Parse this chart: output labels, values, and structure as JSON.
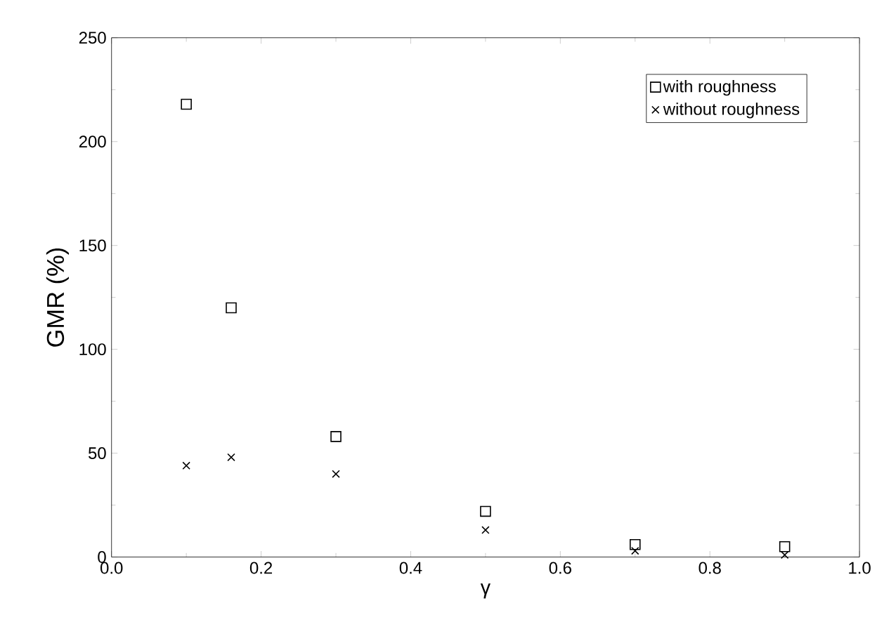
{
  "chart_data": {
    "type": "scatter",
    "xlabel": "γ",
    "ylabel": "GMR (%)",
    "x": [
      0.1,
      0.16,
      0.3,
      0.5,
      0.7,
      0.9
    ],
    "series": [
      {
        "name": "with roughness",
        "color": "#000000",
        "marker": "square",
        "values": [
          218,
          120,
          58,
          22,
          6,
          5
        ]
      },
      {
        "name": "without roughness",
        "color": "#000000",
        "marker": "cross",
        "values": [
          44,
          48,
          40,
          13,
          3,
          1
        ]
      }
    ],
    "xlim": [
      0,
      1
    ],
    "ylim": [
      0,
      250
    ],
    "xticks": [
      {
        "value": 0,
        "label": "0.0"
      },
      0.2,
      0.4,
      0.6,
      0.8,
      {
        "value": 1,
        "label": "1.0"
      }
    ],
    "yticks": [
      0,
      50,
      100,
      150,
      200,
      250
    ],
    "legend": "top right",
    "grid": false
  }
}
